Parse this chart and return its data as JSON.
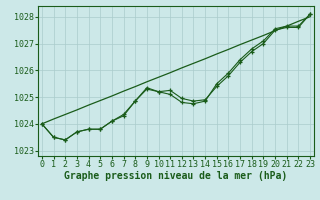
{
  "xlabel": "Graphe pression niveau de la mer (hPa)",
  "background_color": "#cce8e8",
  "grid_color": "#aacccc",
  "line_color": "#1a5c1a",
  "x": [
    0,
    1,
    2,
    3,
    4,
    5,
    6,
    7,
    8,
    9,
    10,
    11,
    12,
    13,
    14,
    15,
    16,
    17,
    18,
    19,
    20,
    21,
    22,
    23
  ],
  "series_straight": [
    1024.0,
    1024.18,
    1024.35,
    1024.52,
    1024.7,
    1024.87,
    1025.04,
    1025.22,
    1025.39,
    1025.57,
    1025.74,
    1025.91,
    1026.09,
    1026.26,
    1026.43,
    1026.61,
    1026.78,
    1026.96,
    1027.13,
    1027.3,
    1027.48,
    1027.65,
    1027.83,
    1028.0
  ],
  "series_mid": [
    1024.0,
    1023.5,
    1023.4,
    1023.7,
    1023.8,
    1023.8,
    1024.1,
    1024.35,
    1024.85,
    1025.3,
    1025.2,
    1025.1,
    1024.8,
    1024.75,
    1024.85,
    1025.5,
    1025.9,
    1026.4,
    1026.8,
    1027.1,
    1027.55,
    1027.65,
    1027.65,
    1028.1
  ],
  "series_deep": [
    1024.0,
    1023.5,
    1023.4,
    1023.7,
    1023.8,
    1023.8,
    1024.1,
    1024.3,
    1024.85,
    1025.35,
    1025.2,
    1025.25,
    1024.95,
    1024.85,
    1024.9,
    1025.4,
    1025.8,
    1026.3,
    1026.7,
    1027.0,
    1027.5,
    1027.6,
    1027.6,
    1028.1
  ],
  "ylim": [
    1022.8,
    1028.4
  ],
  "yticks": [
    1023,
    1024,
    1025,
    1026,
    1027,
    1028
  ],
  "xticks": [
    0,
    1,
    2,
    3,
    4,
    5,
    6,
    7,
    8,
    9,
    10,
    11,
    12,
    13,
    14,
    15,
    16,
    17,
    18,
    19,
    20,
    21,
    22,
    23
  ],
  "xlabel_fontsize": 7.0,
  "tick_fontsize": 6.0
}
